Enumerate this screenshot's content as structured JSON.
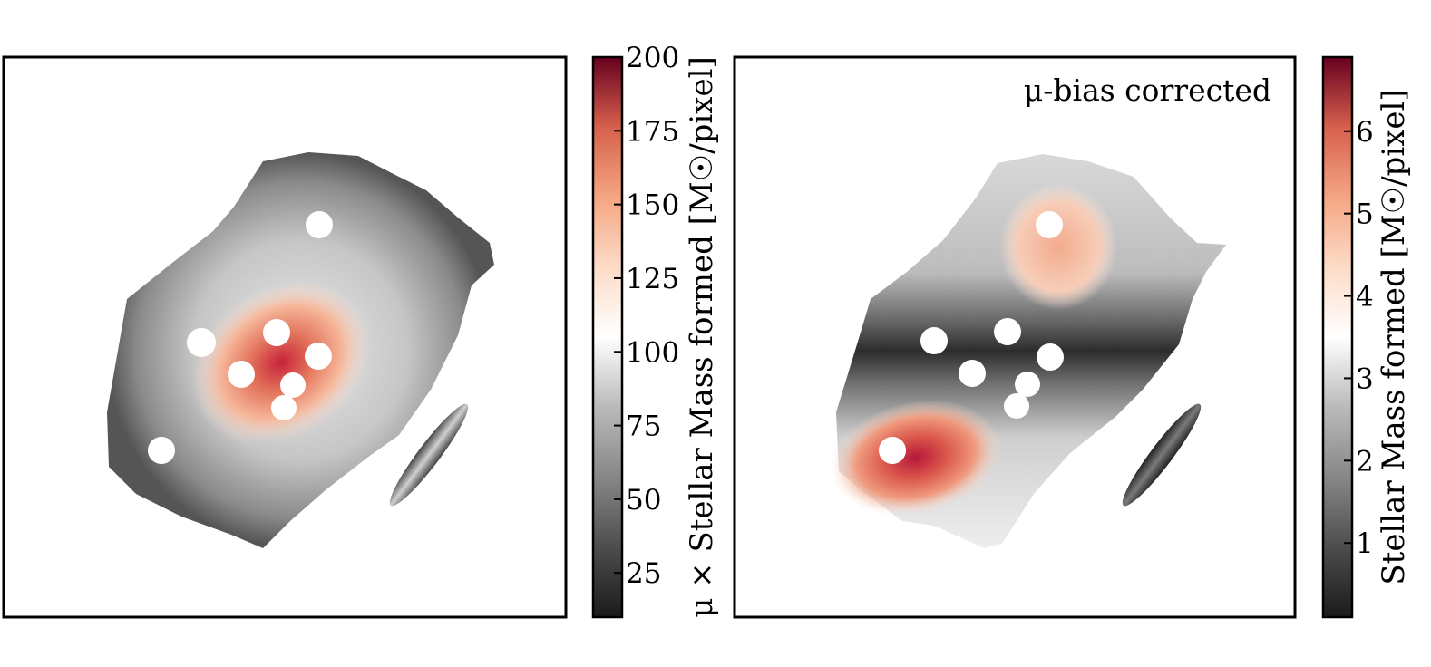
{
  "chart_data": [
    {
      "type": "heatmap",
      "title": "",
      "annotation": "",
      "xlabel": "",
      "ylabel": "",
      "colormap": "RdGy_r",
      "colorbar": {
        "label": "μ × Stellar Mass formed [M☉/pixel]",
        "range": [
          10,
          200
        ],
        "ticks": [
          25,
          50,
          75,
          100,
          125,
          150,
          175,
          200
        ],
        "tick_labels": [
          "25",
          "50",
          "75",
          "100",
          "125",
          "150",
          "175",
          "200"
        ]
      }
    },
    {
      "type": "heatmap",
      "title": "",
      "annotation": "μ-bias corrected",
      "xlabel": "",
      "ylabel": "",
      "colormap": "RdGy_r",
      "colorbar": {
        "label": "Stellar Mass formed [M☉/pixel]",
        "range": [
          0.1,
          6.9
        ],
        "ticks": [
          1,
          2,
          3,
          4,
          5,
          6
        ],
        "tick_labels": [
          "1",
          "2",
          "3",
          "4",
          "5",
          "6"
        ]
      }
    }
  ],
  "colors": {
    "frame": "#000000",
    "background": "#ffffff"
  }
}
